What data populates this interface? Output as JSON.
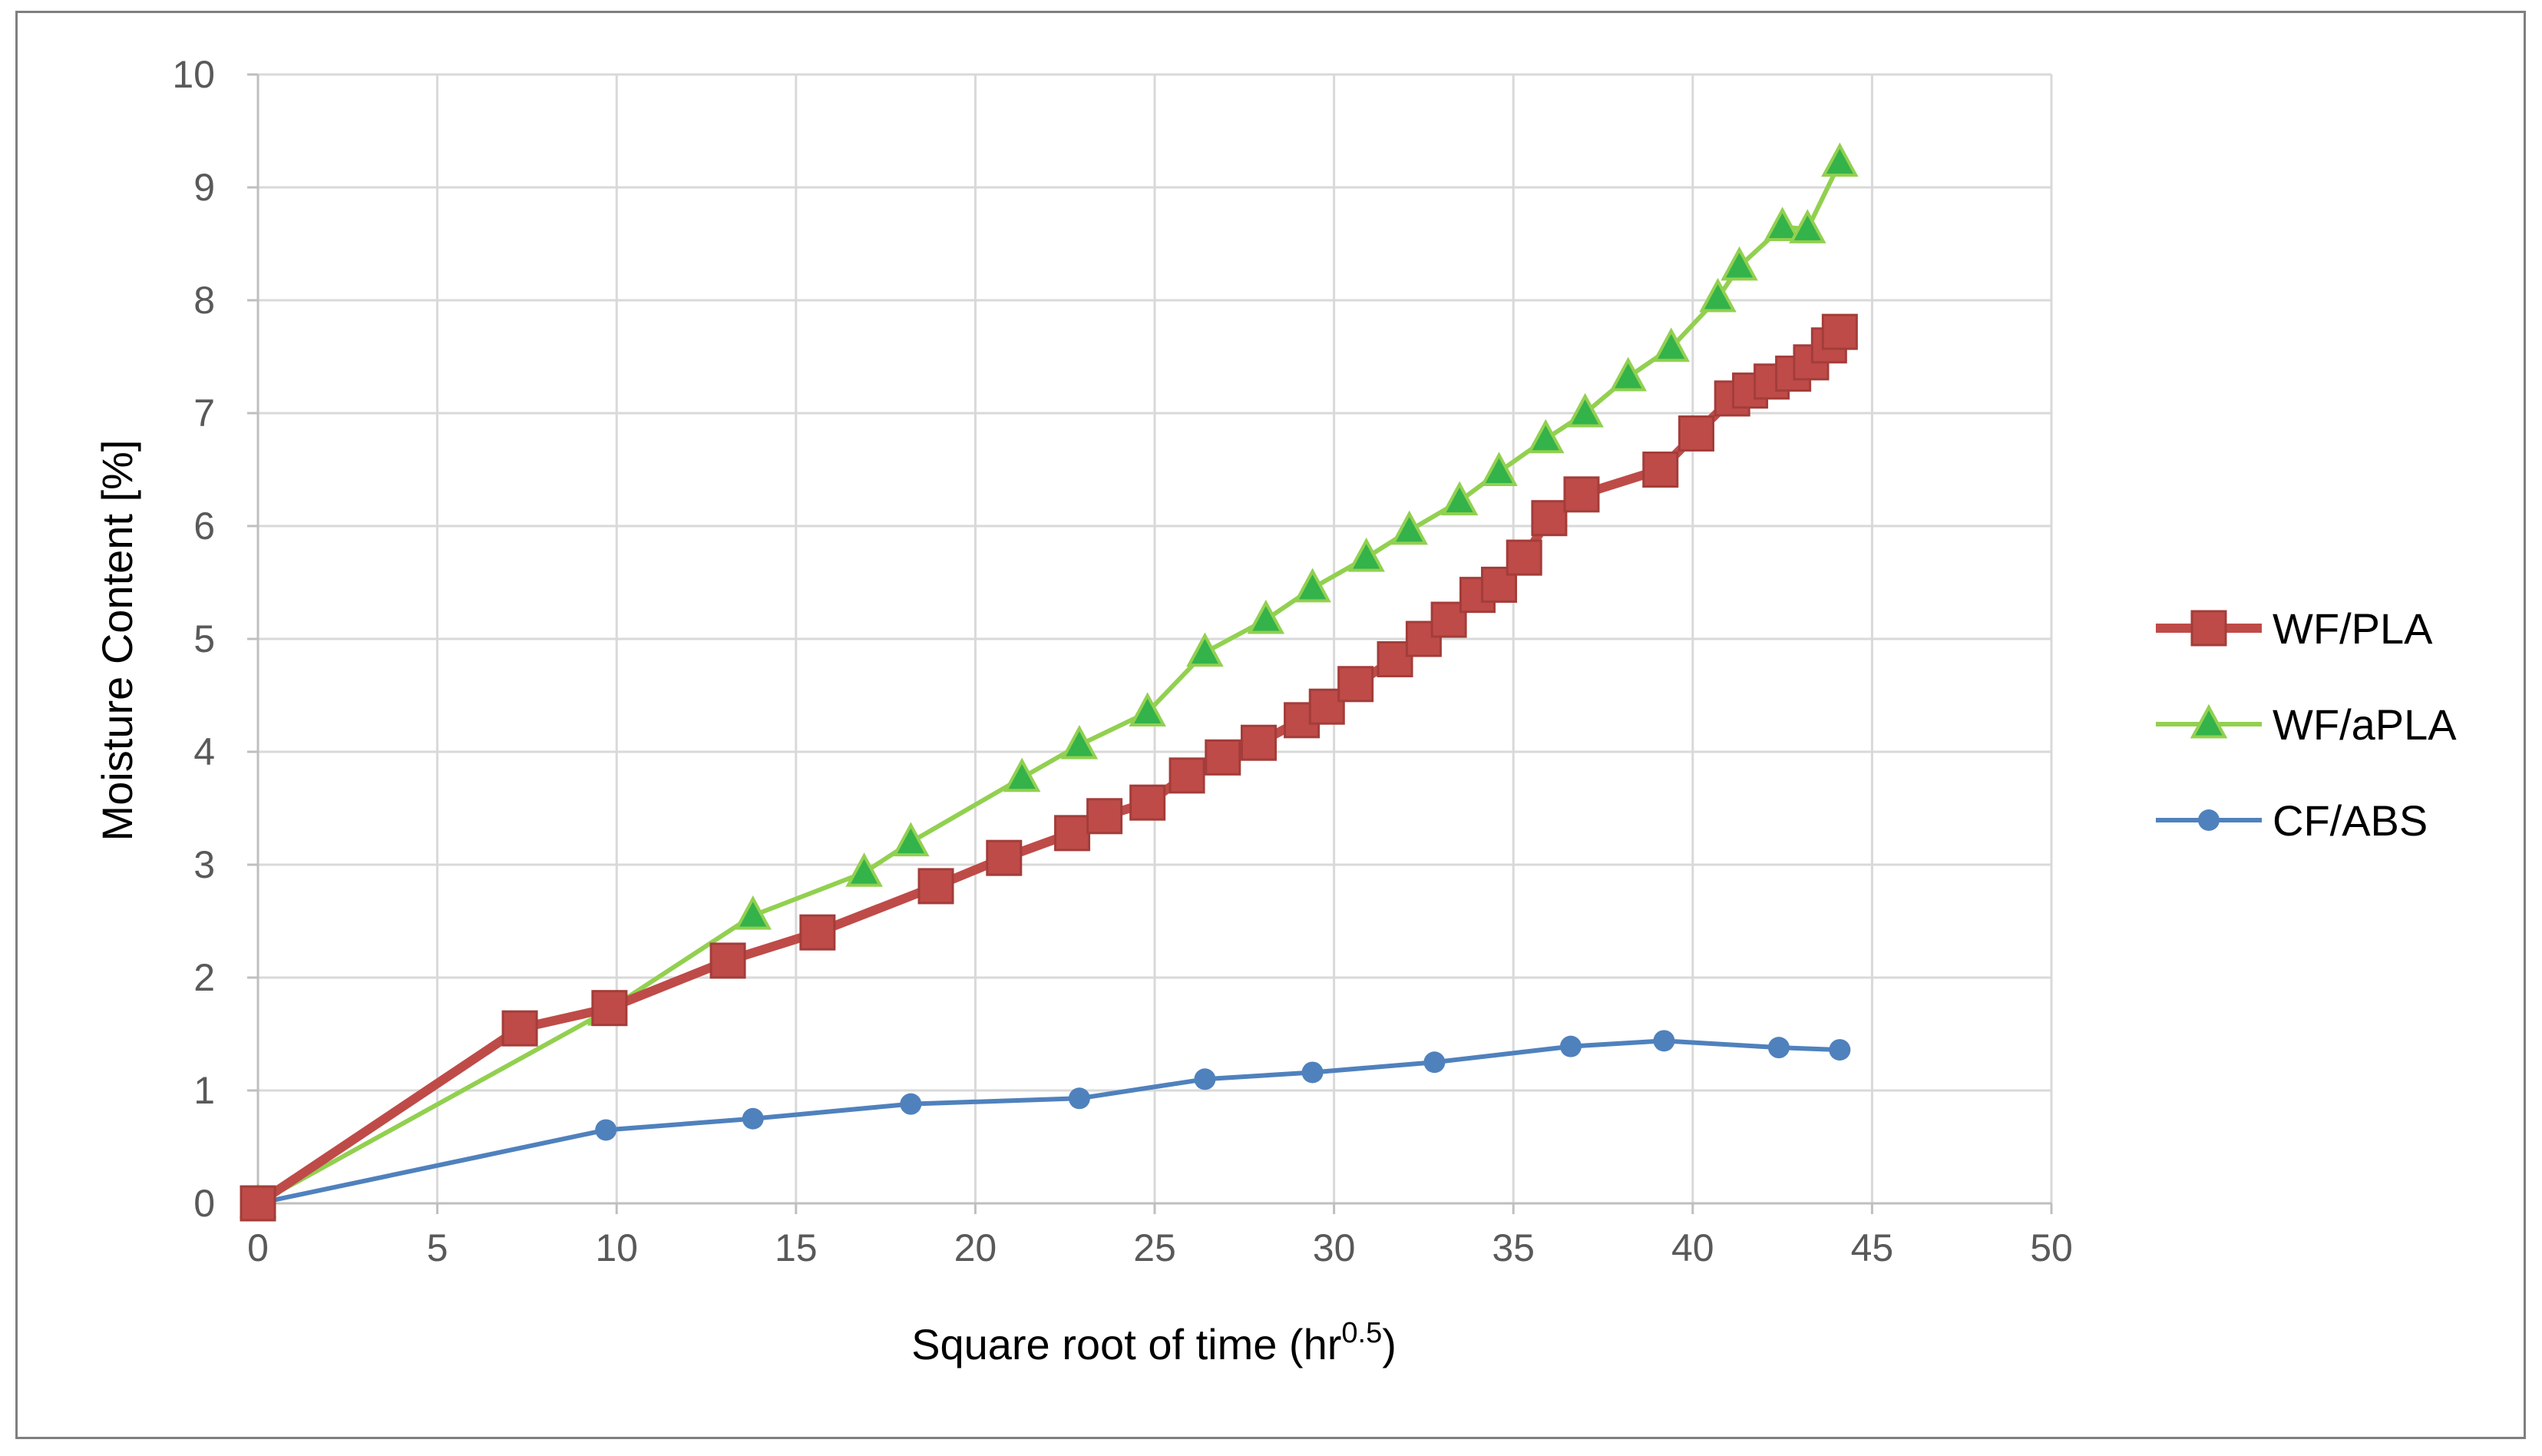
{
  "chart_data": {
    "type": "line",
    "title": "",
    "xlabel": "Square root of time (hr",
    "xlabel_sup": "0.5",
    "xlabel_close": ")",
    "ylabel": "Moisture Content [%]",
    "xlim": [
      0,
      50
    ],
    "ylim": [
      0,
      10
    ],
    "xticks": [
      0,
      5,
      10,
      15,
      20,
      25,
      30,
      35,
      40,
      45,
      50
    ],
    "yticks": [
      0,
      1,
      2,
      3,
      4,
      5,
      6,
      7,
      8,
      9,
      10
    ],
    "grid": true,
    "legend_position": "right",
    "series": [
      {
        "name": "WF/PLA",
        "color": "#be4b48",
        "marker": "square",
        "x": [
          0,
          7.3,
          9.8,
          13.1,
          15.6,
          18.9,
          20.8,
          22.7,
          23.6,
          24.8,
          25.9,
          26.9,
          27.9,
          29.1,
          29.8,
          30.6,
          31.7,
          32.5,
          33.2,
          34.0,
          34.6,
          35.3,
          36.0,
          36.9,
          39.1,
          40.1,
          41.1,
          41.6,
          42.2,
          42.8,
          43.3,
          43.8,
          44.1
        ],
        "y": [
          0,
          1.55,
          1.73,
          2.15,
          2.4,
          2.81,
          3.06,
          3.28,
          3.43,
          3.55,
          3.79,
          3.95,
          4.08,
          4.28,
          4.4,
          4.6,
          4.82,
          5.0,
          5.17,
          5.39,
          5.48,
          5.72,
          6.07,
          6.28,
          6.5,
          6.82,
          7.13,
          7.2,
          7.28,
          7.35,
          7.45,
          7.6,
          7.72
        ]
      },
      {
        "name": "WF/aPLA",
        "color": "#92d050",
        "marker": "triangle",
        "x": [
          0,
          9.7,
          13.8,
          16.9,
          18.2,
          21.3,
          22.9,
          24.8,
          26.4,
          28.1,
          29.4,
          30.9,
          32.1,
          33.5,
          34.6,
          35.9,
          37.0,
          38.2,
          39.4,
          40.7,
          41.3,
          42.5,
          43.2,
          44.1
        ],
        "y": [
          0,
          1.7,
          2.55,
          2.93,
          3.2,
          3.77,
          4.06,
          4.35,
          4.88,
          5.17,
          5.45,
          5.72,
          5.96,
          6.22,
          6.48,
          6.77,
          7.0,
          7.32,
          7.58,
          8.02,
          8.3,
          8.65,
          8.63,
          9.22
        ]
      },
      {
        "name": "CF/ABS",
        "color": "#4f81bd",
        "marker": "circle",
        "x": [
          0,
          9.7,
          13.8,
          18.2,
          22.9,
          26.4,
          29.4,
          32.8,
          36.6,
          39.2,
          42.4,
          44.1
        ],
        "y": [
          0,
          0.65,
          0.75,
          0.88,
          0.93,
          1.1,
          1.16,
          1.25,
          1.39,
          1.44,
          1.38,
          1.36
        ]
      }
    ]
  }
}
